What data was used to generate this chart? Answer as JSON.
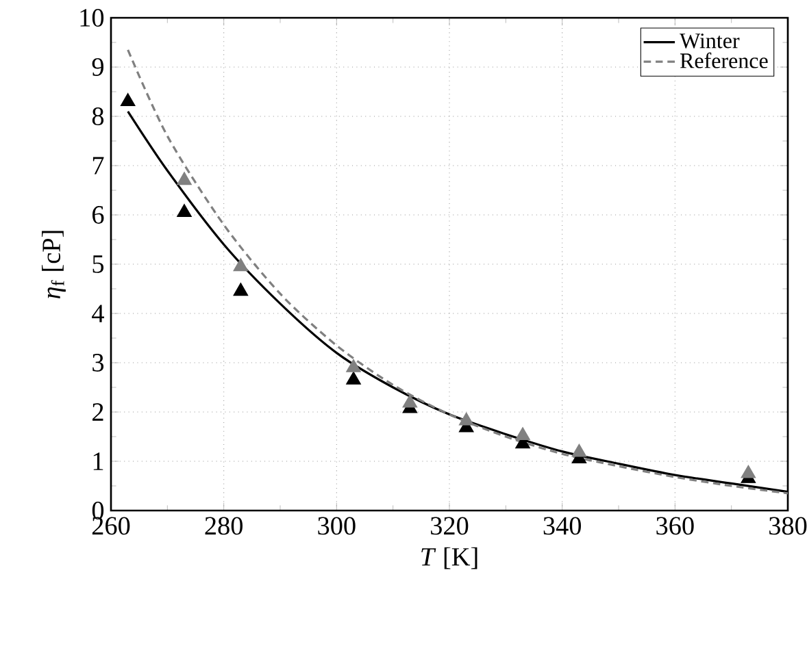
{
  "chart_data": {
    "type": "line",
    "xlabel": "*T* [K]",
    "ylabel": "*η*$_{f}$ [cP]",
    "xlim": [
      260,
      380
    ],
    "ylim": [
      0,
      10
    ],
    "xticks": [
      260,
      280,
      300,
      320,
      340,
      360,
      380
    ],
    "yticks": [
      0,
      1,
      2,
      3,
      4,
      5,
      6,
      7,
      8,
      9,
      10
    ],
    "grid": true,
    "legend": "top right",
    "series": [
      {
        "name": "Winter",
        "color": "#000000",
        "line_style": "solid",
        "marker": "none",
        "x": [
          263,
          270,
          280,
          290,
          300,
          310,
          320,
          330,
          340,
          350,
          360,
          370,
          380
        ],
        "values": [
          8.1,
          6.9,
          5.4,
          4.2,
          3.2,
          2.5,
          1.95,
          1.55,
          1.2,
          0.95,
          0.72,
          0.55,
          0.38
        ]
      },
      {
        "name": "Reference",
        "color": "#808080",
        "line_style": "dashed",
        "marker": "none",
        "x": [
          263,
          270,
          280,
          290,
          300,
          310,
          320,
          330,
          340,
          350,
          360,
          370,
          380
        ],
        "values": [
          9.35,
          7.6,
          5.8,
          4.4,
          3.35,
          2.55,
          1.95,
          1.5,
          1.15,
          0.9,
          0.68,
          0.5,
          0.35
        ]
      },
      {
        "type": "scatter",
        "color": "#000000",
        "marker": "triangle",
        "x": [
          263,
          273,
          283,
          303,
          313,
          323,
          333,
          343,
          373
        ],
        "values": [
          8.3,
          6.05,
          4.45,
          2.65,
          2.07,
          1.68,
          1.35,
          1.05,
          0.65
        ]
      },
      {
        "type": "scatter",
        "color": "#808080",
        "marker": "triangle",
        "x": [
          273,
          283,
          303,
          313,
          323,
          333,
          343,
          373
        ],
        "values": [
          6.7,
          4.95,
          2.9,
          2.18,
          1.82,
          1.52,
          1.18,
          0.75
        ]
      }
    ]
  }
}
